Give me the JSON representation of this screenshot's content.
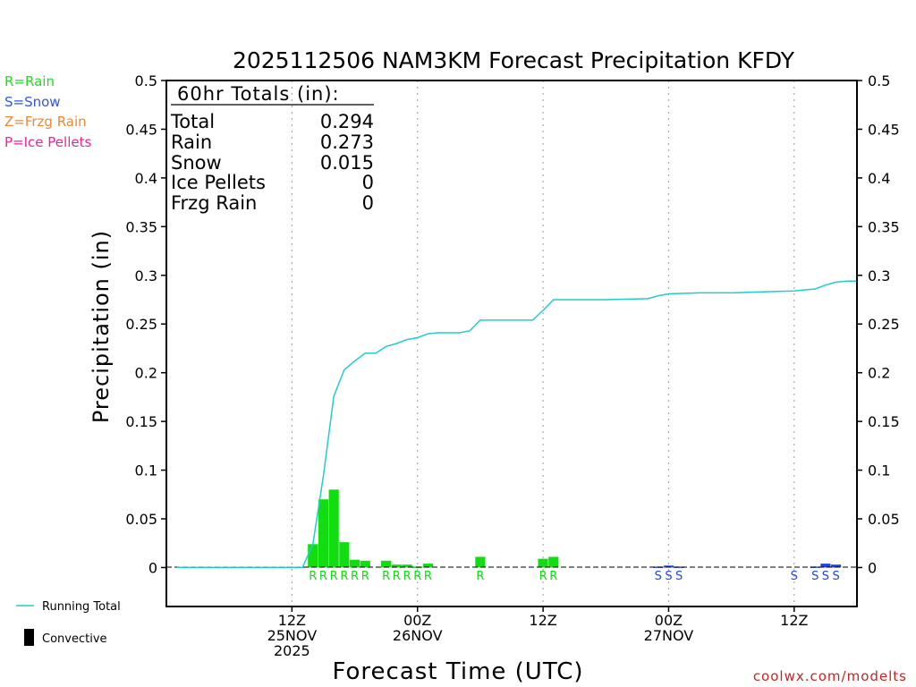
{
  "chart_data": {
    "type": "bar",
    "title": "2025112506 NAM3KM Forecast Precipitation KFDY",
    "xlabel": "Forecast Time (UTC)",
    "ylabel": "Precipitation (in)",
    "ylim": [
      -0.04,
      0.5
    ],
    "xlim_hours": [
      -6,
      60
    ],
    "y_ticks": [
      0,
      0.05,
      0.1,
      0.15,
      0.2,
      0.25,
      0.3,
      0.35,
      0.4,
      0.45,
      0.5
    ],
    "y_tick_labels": [
      "0",
      "0.05",
      "0.1",
      "0.15",
      "0.2",
      "0.25",
      "0.3",
      "0.35",
      "0.4",
      "0.45",
      "0.5"
    ],
    "x_ticks": [
      {
        "hour": 6,
        "line1": "12Z",
        "line2": "25NOV",
        "line3": "2025"
      },
      {
        "hour": 18,
        "line1": "00Z",
        "line2": "26NOV",
        "line3": ""
      },
      {
        "hour": 30,
        "line1": "12Z",
        "line2": "",
        "line3": ""
      },
      {
        "hour": 42,
        "line1": "00Z",
        "line2": "27NOV",
        "line3": ""
      },
      {
        "hour": 54,
        "line1": "12Z",
        "line2": "",
        "line3": ""
      }
    ],
    "type_legend": [
      {
        "label": "R=Rain",
        "color": "#22dd22"
      },
      {
        "label": "S=Snow",
        "color": "#3355ee"
      },
      {
        "label": "Z=Frzg Rain",
        "color": "#ee8833"
      },
      {
        "label": "P=Ice Pellets",
        "color": "#ee2299"
      }
    ],
    "totals": {
      "header": "60hr Totals (in):",
      "rows": [
        {
          "label": "Total",
          "value": "0.294"
        },
        {
          "label": "Rain",
          "value": "0.273"
        },
        {
          "label": "Snow",
          "value": "0.015"
        },
        {
          "label": "Ice Pellets",
          "value": "0"
        },
        {
          "label": "Frzg Rain",
          "value": "0"
        }
      ]
    },
    "bars": [
      {
        "hour": 8,
        "value": 0.024,
        "ptype": "rain"
      },
      {
        "hour": 9,
        "value": 0.07,
        "ptype": "rain"
      },
      {
        "hour": 10,
        "value": 0.08,
        "ptype": "rain"
      },
      {
        "hour": 11,
        "value": 0.026,
        "ptype": "rain"
      },
      {
        "hour": 12,
        "value": 0.008,
        "ptype": "rain"
      },
      {
        "hour": 13,
        "value": 0.007,
        "ptype": "rain"
      },
      {
        "hour": 15,
        "value": 0.007,
        "ptype": "rain"
      },
      {
        "hour": 16,
        "value": 0.003,
        "ptype": "rain"
      },
      {
        "hour": 17,
        "value": 0.003,
        "ptype": "rain"
      },
      {
        "hour": 18,
        "value": 0.001,
        "ptype": "rain"
      },
      {
        "hour": 19,
        "value": 0.004,
        "ptype": "rain"
      },
      {
        "hour": 24,
        "value": 0.011,
        "ptype": "rain"
      },
      {
        "hour": 30,
        "value": 0.009,
        "ptype": "rain"
      },
      {
        "hour": 31,
        "value": 0.011,
        "ptype": "rain"
      },
      {
        "hour": 41,
        "value": 0.001,
        "ptype": "snow"
      },
      {
        "hour": 42,
        "value": 0.002,
        "ptype": "snow"
      },
      {
        "hour": 43,
        "value": 0.001,
        "ptype": "snow"
      },
      {
        "hour": 56,
        "value": 0.001,
        "ptype": "snow"
      },
      {
        "hour": 57,
        "value": 0.004,
        "ptype": "snow"
      },
      {
        "hour": 58,
        "value": 0.003,
        "ptype": "snow"
      }
    ],
    "type_markers": [
      {
        "hour": 8,
        "letter": "R",
        "ptype": "rain"
      },
      {
        "hour": 9,
        "letter": "R",
        "ptype": "rain"
      },
      {
        "hour": 10,
        "letter": "R",
        "ptype": "rain"
      },
      {
        "hour": 11,
        "letter": "R",
        "ptype": "rain"
      },
      {
        "hour": 12,
        "letter": "R",
        "ptype": "rain"
      },
      {
        "hour": 13,
        "letter": "R",
        "ptype": "rain"
      },
      {
        "hour": 15,
        "letter": "R",
        "ptype": "rain"
      },
      {
        "hour": 16,
        "letter": "R",
        "ptype": "rain"
      },
      {
        "hour": 17,
        "letter": "R",
        "ptype": "rain"
      },
      {
        "hour": 18,
        "letter": "R",
        "ptype": "rain"
      },
      {
        "hour": 19,
        "letter": "R",
        "ptype": "rain"
      },
      {
        "hour": 24,
        "letter": "R",
        "ptype": "rain"
      },
      {
        "hour": 30,
        "letter": "R",
        "ptype": "rain"
      },
      {
        "hour": 31,
        "letter": "R",
        "ptype": "rain"
      },
      {
        "hour": 41,
        "letter": "S",
        "ptype": "snow"
      },
      {
        "hour": 42,
        "letter": "S",
        "ptype": "snow"
      },
      {
        "hour": 43,
        "letter": "S",
        "ptype": "snow"
      },
      {
        "hour": 54,
        "letter": "S",
        "ptype": "snow"
      },
      {
        "hour": 56,
        "letter": "S",
        "ptype": "snow"
      },
      {
        "hour": 57,
        "letter": "S",
        "ptype": "snow"
      },
      {
        "hour": 58,
        "letter": "S",
        "ptype": "snow"
      }
    ],
    "running_total": {
      "name": "Running Total",
      "hours": [
        -5,
        7,
        8,
        9,
        10,
        11,
        12,
        13,
        14,
        15,
        16,
        17,
        18,
        19,
        20,
        22,
        23,
        24,
        26,
        28,
        29,
        30,
        31,
        34,
        36,
        40,
        41,
        42,
        45,
        48,
        51,
        54,
        55,
        56,
        57,
        58,
        59,
        60
      ],
      "values": [
        0,
        0,
        0.024,
        0.094,
        0.176,
        0.203,
        0.212,
        0.22,
        0.22,
        0.227,
        0.23,
        0.234,
        0.236,
        0.24,
        0.241,
        0.241,
        0.243,
        0.254,
        0.254,
        0.254,
        0.254,
        0.264,
        0.275,
        0.275,
        0.275,
        0.276,
        0.279,
        0.281,
        0.282,
        0.282,
        0.283,
        0.284,
        0.285,
        0.286,
        0.29,
        0.293,
        0.294,
        0.294
      ]
    },
    "legend": [
      {
        "label": "Running Total",
        "kind": "line"
      },
      {
        "label": "Convective",
        "kind": "box"
      }
    ],
    "colors": {
      "rain": "#11dd11",
      "snow": "#2244dd",
      "line": "#22cccc",
      "axis": "#000000",
      "grid": "#aaaaaa",
      "watermark": "#cc2222"
    },
    "watermark": "coolwx.com/modelts"
  }
}
